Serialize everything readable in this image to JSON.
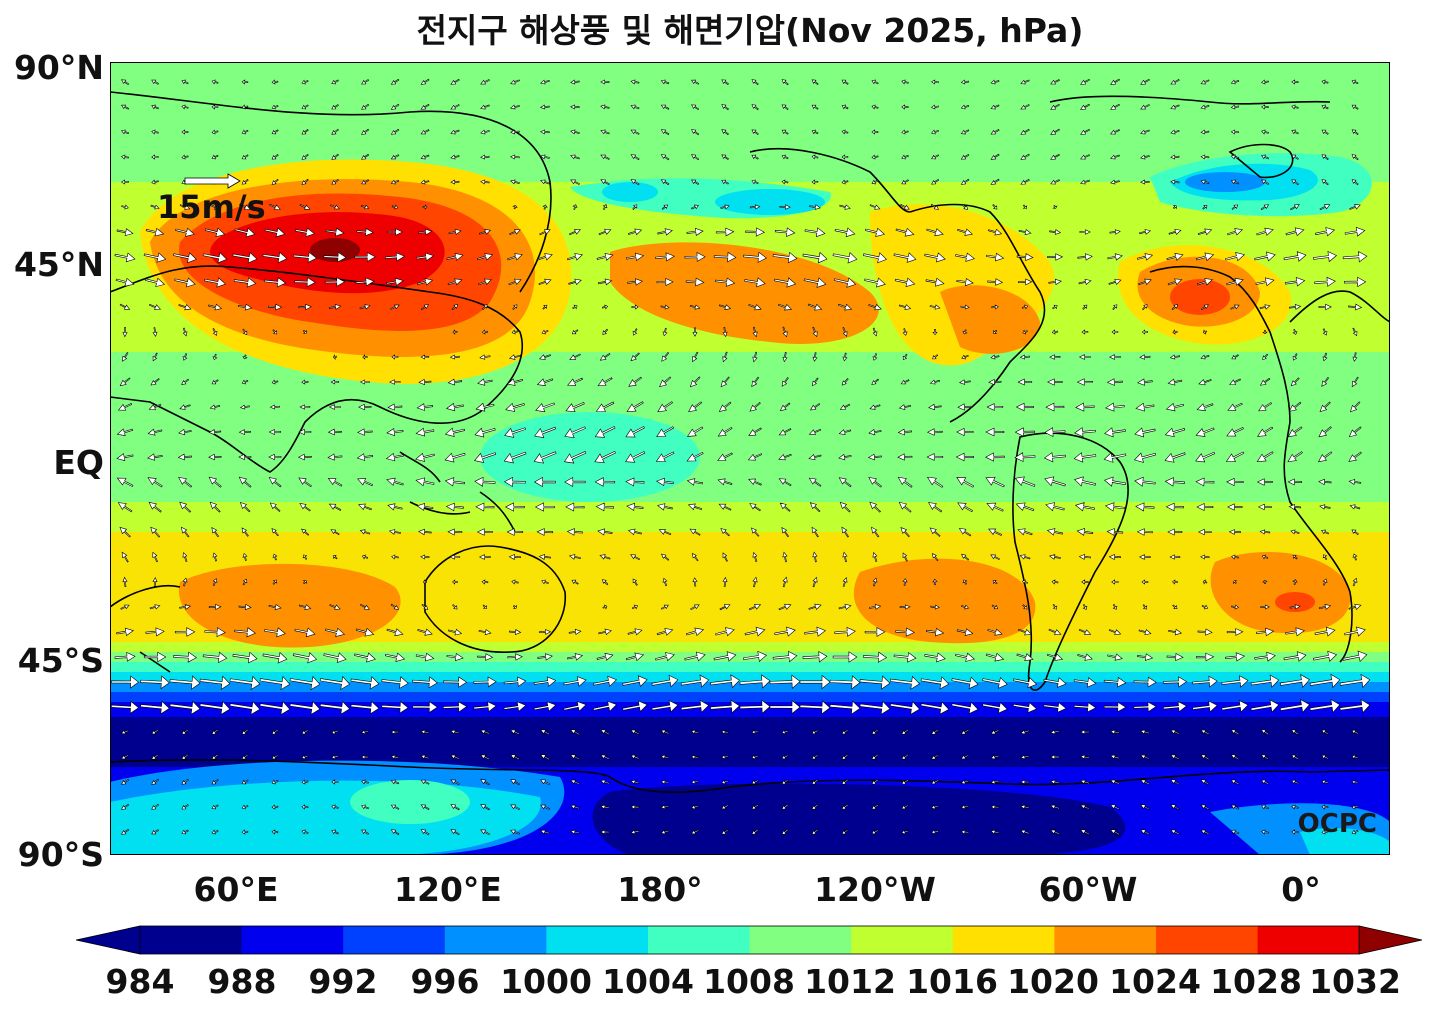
{
  "title": "전지구 해상풍 및 해면기압(Nov 2025, hPa)",
  "lat_labels": [
    "90°N",
    "45°N",
    "EQ",
    "45°S",
    "90°S"
  ],
  "lon_labels": [
    "60°E",
    "120°E",
    "180°",
    "120°W",
    "60°W",
    "0°"
  ],
  "reference_vector": "15m/s",
  "watermark": "OCPC",
  "colorbar": {
    "labels": [
      "984",
      "988",
      "992",
      "996",
      "1000",
      "1004",
      "1008",
      "1012",
      "1016",
      "1020",
      "1024",
      "1028",
      "1032"
    ],
    "colors": [
      "#00008f",
      "#0000ee",
      "#0040ff",
      "#0090ff",
      "#00e0f0",
      "#40ffc0",
      "#80ff80",
      "#c0ff30",
      "#ffe000",
      "#ff9000",
      "#ff4500",
      "#ee0000",
      "#8f0000"
    ]
  },
  "map_colors": {
    "background": "#80ff80",
    "land_outline": "#000000",
    "vector": "#ffffff"
  }
}
